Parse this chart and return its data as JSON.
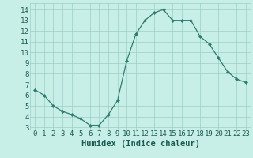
{
  "x": [
    0,
    1,
    2,
    3,
    4,
    5,
    6,
    7,
    8,
    9,
    10,
    11,
    12,
    13,
    14,
    15,
    16,
    17,
    18,
    19,
    20,
    21,
    22,
    23
  ],
  "y": [
    6.5,
    6.0,
    5.0,
    4.5,
    4.2,
    3.8,
    3.2,
    3.2,
    4.2,
    5.5,
    9.2,
    11.7,
    13.0,
    13.7,
    14.0,
    13.0,
    13.0,
    13.0,
    11.5,
    10.8,
    9.5,
    8.2,
    7.5,
    7.2
  ],
  "xlabel": "Humidex (Indice chaleur)",
  "xlim": [
    -0.5,
    23.5
  ],
  "ylim": [
    2.8,
    14.6
  ],
  "yticks": [
    3,
    4,
    5,
    6,
    7,
    8,
    9,
    10,
    11,
    12,
    13,
    14
  ],
  "xticks": [
    0,
    1,
    2,
    3,
    4,
    5,
    6,
    7,
    8,
    9,
    10,
    11,
    12,
    13,
    14,
    15,
    16,
    17,
    18,
    19,
    20,
    21,
    22,
    23
  ],
  "line_color": "#2E7D6E",
  "marker_color": "#2E7D6E",
  "bg_color": "#C8EEE8",
  "grid_color": "#9ECEC5",
  "label_color": "#1A5C52",
  "tick_color": "#1A5C52",
  "xlabel_fontsize": 7.5,
  "tick_fontsize": 6.5
}
